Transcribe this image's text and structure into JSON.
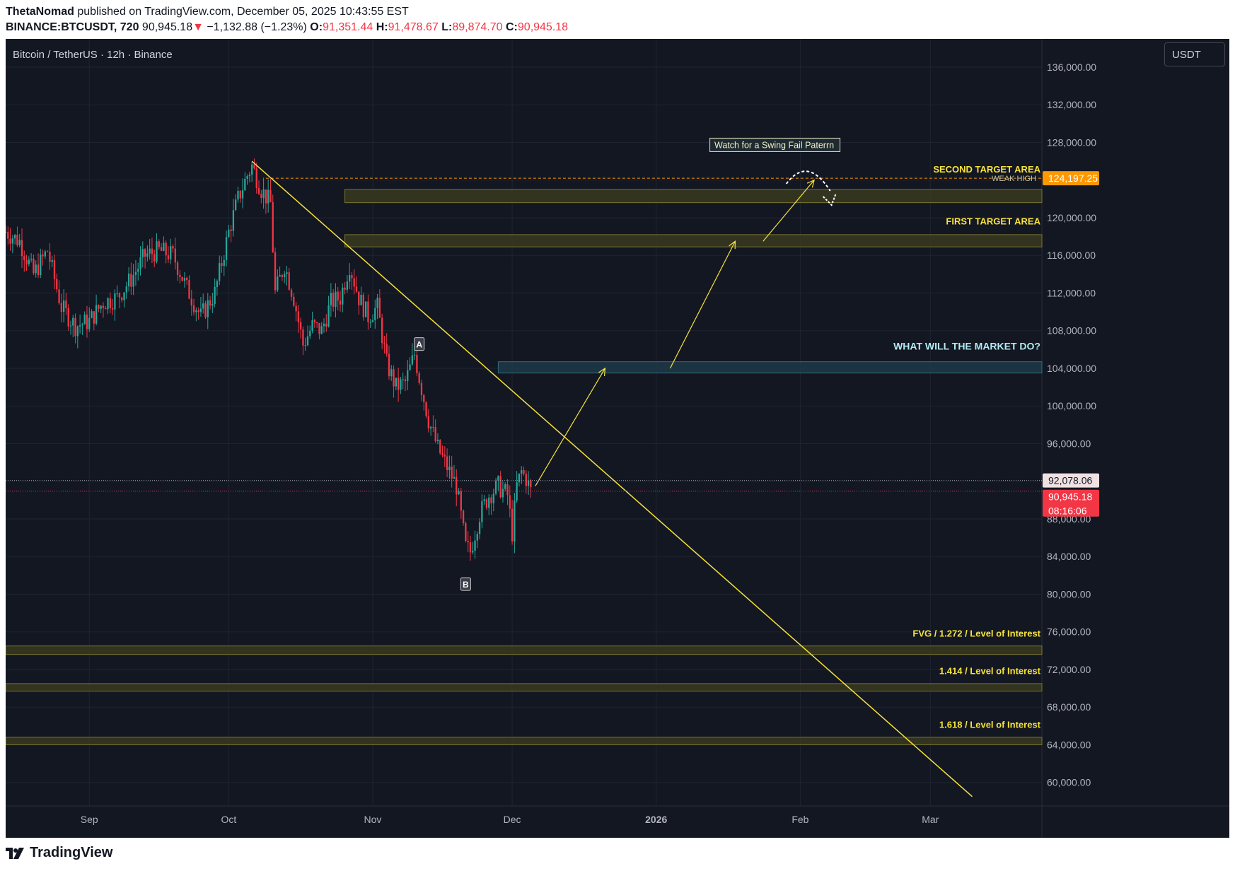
{
  "header": {
    "author": "ThetaNomad",
    "published": " published on TradingView.com, December 05, 2025 10:43:55 EST",
    "symbol": "BINANCE:BTCUSDT, 720",
    "price": "90,945.18",
    "change_arrow": "▼",
    "change": "−1,132.88 (−1.23%)",
    "o_label": "O:",
    "o_value": "91,351.44",
    "h_label": "H:",
    "h_value": "91,478.67",
    "l_label": "L:",
    "l_value": "89,874.70",
    "c_label": "C:",
    "c_value": "90,945.18"
  },
  "chart_title": "Bitcoin / TetherUS · 12h · Binance",
  "currency_button": "USDT",
  "footer": {
    "brand": "TradingView"
  },
  "colors": {
    "background": "#131722",
    "up": "#26a69a",
    "down": "#f23645",
    "annotation": "#f7e33b",
    "zone_fill": "#3a3a1f",
    "cyan_zone": "#1f3a46",
    "cyan_text": "#b2ebf2",
    "weak_high": "#ff9800"
  },
  "chart_data": {
    "type": "candlestick",
    "title": "Bitcoin / TetherUS · 12h · Binance",
    "x_ticks": [
      "Sep",
      "Oct",
      "Nov",
      "Dec",
      "2026",
      "Feb",
      "Mar"
    ],
    "y_ticks": [
      "136,000.00",
      "132,000.00",
      "128,000.00",
      "124,000.00",
      "120,000.00",
      "116,000.00",
      "112,000.00",
      "108,000.00",
      "104,000.00",
      "100,000.00",
      "96,000.00",
      "92,000.00",
      "88,000.00",
      "84,000.00",
      "80,000.00",
      "76,000.00",
      "72,000.00",
      "68,000.00",
      "64,000.00",
      "60,000.00"
    ],
    "ylim": [
      57500,
      139000
    ],
    "x_range": [
      "2025-08-14",
      "2026-03-25"
    ],
    "price_path": [
      [
        "2025-08-14",
        118500
      ],
      [
        "2025-08-17",
        117500
      ],
      [
        "2025-08-20",
        114000
      ],
      [
        "2025-08-23",
        116500
      ],
      [
        "2025-08-26",
        110500
      ],
      [
        "2025-08-29",
        108500
      ],
      [
        "2025-09-01",
        109000
      ],
      [
        "2025-09-04",
        111000
      ],
      [
        "2025-09-07",
        111500
      ],
      [
        "2025-09-10",
        113500
      ],
      [
        "2025-09-13",
        116000
      ],
      [
        "2025-09-16",
        116500
      ],
      [
        "2025-09-19",
        116000
      ],
      [
        "2025-09-22",
        112500
      ],
      [
        "2025-09-25",
        109500
      ],
      [
        "2025-09-28",
        112000
      ],
      [
        "2025-10-01",
        118500
      ],
      [
        "2025-10-03",
        122000
      ],
      [
        "2025-10-05",
        124500
      ],
      [
        "2025-10-06",
        125500
      ],
      [
        "2025-10-08",
        123000
      ],
      [
        "2025-10-10",
        121500
      ],
      [
        "2025-10-11",
        112000
      ],
      [
        "2025-10-13",
        115000
      ],
      [
        "2025-10-15",
        111500
      ],
      [
        "2025-10-17",
        106500
      ],
      [
        "2025-10-19",
        108500
      ],
      [
        "2025-10-21",
        108000
      ],
      [
        "2025-10-23",
        111000
      ],
      [
        "2025-10-25",
        111500
      ],
      [
        "2025-10-27",
        115000
      ],
      [
        "2025-10-29",
        111500
      ],
      [
        "2025-10-31",
        109500
      ],
      [
        "2025-11-02",
        110500
      ],
      [
        "2025-11-04",
        104500
      ],
      [
        "2025-11-06",
        102000
      ],
      [
        "2025-11-08",
        102500
      ],
      [
        "2025-11-10",
        105500
      ],
      [
        "2025-11-11",
        103000
      ],
      [
        "2025-11-13",
        98500
      ],
      [
        "2025-11-15",
        95500
      ],
      [
        "2025-11-17",
        93500
      ],
      [
        "2025-11-19",
        91500
      ],
      [
        "2025-11-21",
        85000
      ],
      [
        "2025-11-22",
        84500
      ],
      [
        "2025-11-24",
        88500
      ],
      [
        "2025-11-26",
        90500
      ],
      [
        "2025-11-28",
        91500
      ],
      [
        "2025-11-30",
        90500
      ],
      [
        "2025-12-01",
        86500
      ],
      [
        "2025-12-02",
        91500
      ],
      [
        "2025-12-03",
        93000
      ],
      [
        "2025-12-04",
        92300
      ],
      [
        "2025-12-05",
        90945
      ]
    ],
    "last_price": "90,945.18",
    "countdown": "08:16:06",
    "prev_close": "92,078.06",
    "weak_high_price": "124,197.25",
    "swing_labels": [
      {
        "text": "A",
        "date": "2025-11-11",
        "price": 106500
      },
      {
        "text": "B",
        "date": "2025-11-21",
        "price": 81000
      }
    ],
    "zones": [
      {
        "label": "SECOND TARGET AREA",
        "from_date": "2025-10-26",
        "to": 123000,
        "from": 121600,
        "text_price": 124800
      },
      {
        "label": "FIRST TARGET AREA",
        "from_date": "2025-10-26",
        "to": 118200,
        "from": 116900,
        "text_price": 119300
      },
      {
        "label": "WHAT WILL THE MARKET DO?",
        "from_date": "2025-11-28",
        "to": 104700,
        "from": 103500,
        "text_price": 106000,
        "style": "cyan"
      },
      {
        "label": "FVG / 1.272 / Level of Interest",
        "from_date": "2025-08-14",
        "to": 74500,
        "from": 73600,
        "text_price": 75500
      },
      {
        "label": "1.414 / Level of Interest",
        "from_date": "2025-08-14",
        "to": 70500,
        "from": 69700,
        "text_price": 71500
      },
      {
        "label": "1.618 / Level of Interest",
        "from_date": "2025-08-14",
        "to": 64800,
        "from": 64000,
        "text_price": 65800
      }
    ],
    "weak_high_label": "WEAK HIGH",
    "swing_fail_note": "Watch for a Swing Fail Paterrn",
    "trendline": [
      [
        "2025-10-06",
        126000
      ],
      [
        "2026-03-10",
        58500
      ]
    ],
    "projection": [
      [
        "2025-12-06",
        91500
      ],
      [
        "2025-12-21",
        104000
      ],
      [
        "2026-01-04",
        104000
      ],
      [
        "2026-01-18",
        117500
      ],
      [
        "2026-01-24",
        117500
      ],
      [
        "2026-02-04",
        124000
      ]
    ]
  }
}
